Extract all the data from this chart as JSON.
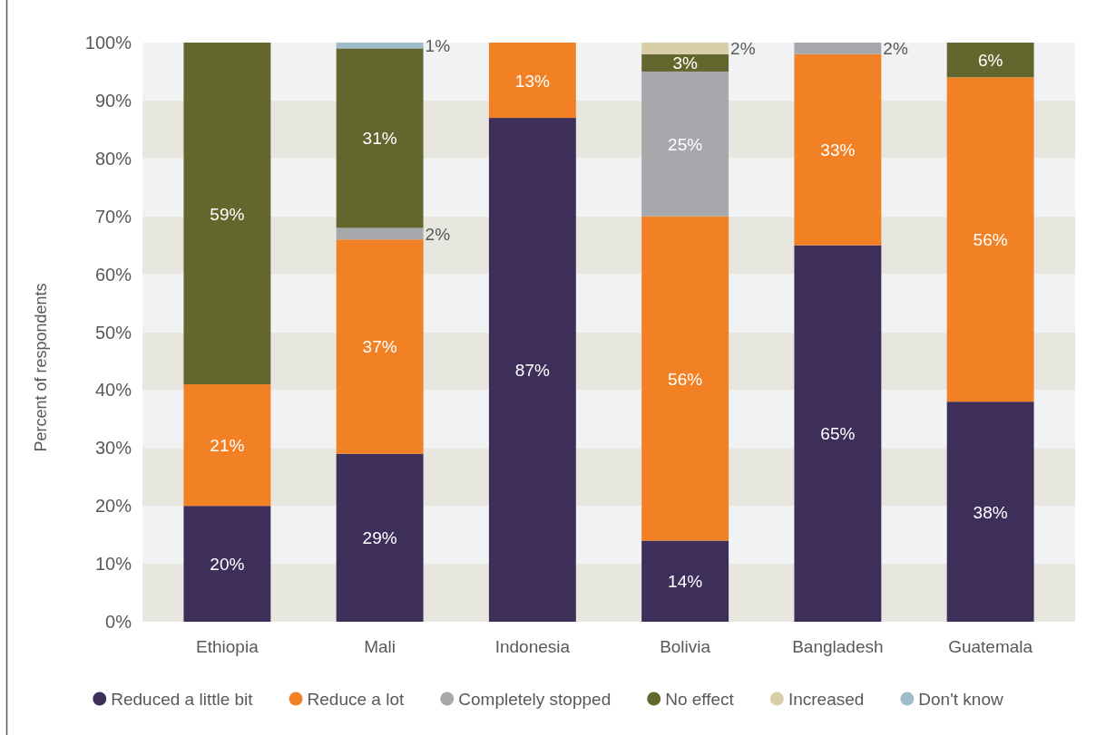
{
  "chart_data": {
    "type": "bar",
    "stacked": true,
    "ylabel": "Percent of respondents",
    "categories": [
      "Ethiopia",
      "Mali",
      "Indonesia",
      "Bolivia",
      "Bangladesh",
      "Guatemala"
    ],
    "series": [
      {
        "name": "Reduced a little bit",
        "color": "#3d2f5a",
        "values": [
          20,
          29,
          87,
          14,
          65,
          38
        ],
        "value_labels": [
          "20%",
          "29%",
          "87%",
          "14%",
          "65%",
          "38%"
        ]
      },
      {
        "name": "Reduce a lot",
        "color": "#f28024",
        "values": [
          21,
          37,
          13,
          56,
          33,
          56
        ],
        "value_labels": [
          "21%",
          "37%",
          "13%",
          "56%",
          "33%",
          "56%"
        ]
      },
      {
        "name": "Completely stopped",
        "color": "#a7a8ac",
        "values": [
          null,
          2,
          null,
          25,
          2,
          null
        ],
        "value_labels": [
          null,
          "2%",
          null,
          "25%",
          "2%",
          null
        ]
      },
      {
        "name": "No effect",
        "color": "#63672d",
        "values": [
          59,
          31,
          null,
          3,
          null,
          6
        ],
        "value_labels": [
          "59%",
          "31%",
          null,
          "3%",
          null,
          "6%"
        ]
      },
      {
        "name": "Increased",
        "color": "#d9cfa7",
        "values": [
          null,
          null,
          null,
          2,
          null,
          null
        ],
        "value_labels": [
          null,
          null,
          null,
          "2%",
          null,
          null
        ]
      },
      {
        "name": "Don't know",
        "color": "#9fbcc9",
        "values": [
          null,
          1,
          null,
          null,
          null,
          null
        ],
        "value_labels": [
          null,
          "1%",
          null,
          null,
          null,
          null
        ]
      }
    ],
    "ylim": [
      0,
      100
    ],
    "yticks": [
      {
        "value": 0,
        "label": "0%"
      },
      {
        "value": 10,
        "label": "10%"
      },
      {
        "value": 20,
        "label": "20%"
      },
      {
        "value": 30,
        "label": "30%"
      },
      {
        "value": 40,
        "label": "40%"
      },
      {
        "value": 50,
        "label": "50%"
      },
      {
        "value": 60,
        "label": "60%"
      },
      {
        "value": 70,
        "label": "70%"
      },
      {
        "value": 80,
        "label": "80%"
      },
      {
        "value": 90,
        "label": "90%"
      },
      {
        "value": 100,
        "label": "100%"
      }
    ],
    "bands": [
      {
        "axis": "y",
        "from": 0,
        "to": 10,
        "color": "#e8e7df"
      },
      {
        "axis": "y",
        "from": 10,
        "to": 20,
        "color": "#f1f2f4"
      },
      {
        "axis": "y",
        "from": 20,
        "to": 30,
        "color": "#e8e7df"
      },
      {
        "axis": "y",
        "from": 30,
        "to": 40,
        "color": "#f1f2f4"
      },
      {
        "axis": "y",
        "from": 40,
        "to": 50,
        "color": "#e8e7df"
      },
      {
        "axis": "y",
        "from": 50,
        "to": 60,
        "color": "#f1f2f4"
      },
      {
        "axis": "y",
        "from": 60,
        "to": 70,
        "color": "#e8e7df"
      },
      {
        "axis": "y",
        "from": 70,
        "to": 80,
        "color": "#f1f2f4"
      },
      {
        "axis": "y",
        "from": 80,
        "to": 90,
        "color": "#e8e7df"
      },
      {
        "axis": "y",
        "from": 90,
        "to": 100,
        "color": "#f1f2f4"
      }
    ],
    "legend": "bottom"
  }
}
